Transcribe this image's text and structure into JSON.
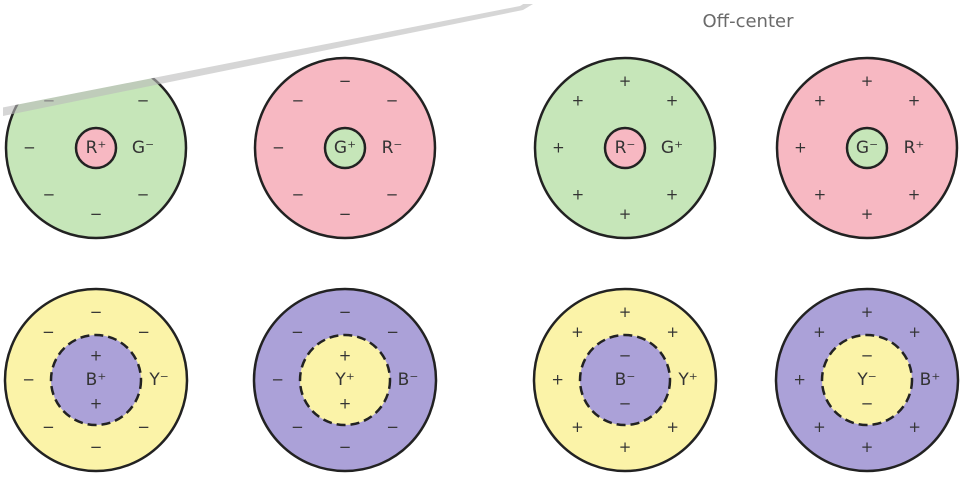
{
  "header": {
    "title": "Off-center"
  },
  "cells": [
    {
      "center": "R⁺",
      "surround": "G⁻",
      "surround_sign": "−",
      "center_color": "#f7b8c2",
      "surround_color": "#c6e6b9",
      "dashed": false
    },
    {
      "center": "G⁺",
      "surround": "R⁻",
      "surround_sign": "−",
      "center_color": "#c6e6b9",
      "surround_color": "#f7b8c2",
      "dashed": false
    },
    {
      "center": "R⁻",
      "surround": "G⁺",
      "surround_sign": "+",
      "center_color": "#f7b8c2",
      "surround_color": "#c6e6b9",
      "dashed": false
    },
    {
      "center": "G⁻",
      "surround": "R⁺",
      "surround_sign": "+",
      "center_color": "#c6e6b9",
      "surround_color": "#f7b8c2",
      "dashed": false
    },
    {
      "center": "B⁺",
      "surround": "Y⁻",
      "surround_sign": "−",
      "center_sign": "+",
      "center_color": "#aba1d8",
      "surround_color": "#fbf3a8",
      "dashed": true
    },
    {
      "center": "Y⁺",
      "surround": "B⁻",
      "surround_sign": "−",
      "center_sign": "+",
      "center_color": "#fbf3a8",
      "surround_color": "#aba1d8",
      "dashed": true
    },
    {
      "center": "B⁻",
      "surround": "Y⁺",
      "surround_sign": "+",
      "center_sign": "−",
      "center_color": "#aba1d8",
      "surround_color": "#fbf3a8",
      "dashed": true
    },
    {
      "center": "Y⁻",
      "surround": "B⁺",
      "surround_sign": "+",
      "center_sign": "−",
      "center_color": "#fbf3a8",
      "surround_color": "#aba1d8",
      "dashed": true
    }
  ]
}
